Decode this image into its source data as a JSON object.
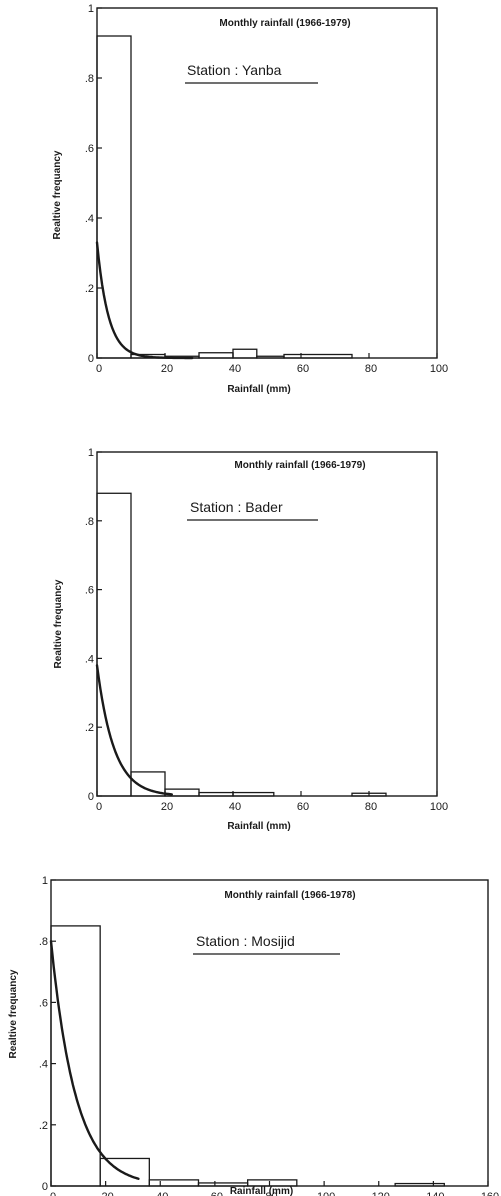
{
  "chart_data": [
    {
      "type": "bar",
      "title": "Monthly rainfall (1966-1979)",
      "station_label": "Station : Yanba",
      "xlabel": "Rainfall (mm)",
      "ylabel": "Realtive frequancy",
      "xlim": [
        0,
        100
      ],
      "ylim": [
        0,
        1
      ],
      "xticks": [
        "0",
        "20",
        "40",
        "60",
        "80",
        "100"
      ],
      "yticks": [
        "0",
        ".2",
        ".4",
        ".6",
        ".8",
        "1"
      ],
      "bins": [
        {
          "x0": 0,
          "x1": 10,
          "value": 0.92
        },
        {
          "x0": 10,
          "x1": 20,
          "value": 0.01
        },
        {
          "x0": 20,
          "x1": 30,
          "value": 0.005
        },
        {
          "x0": 30,
          "x1": 40,
          "value": 0.015
        },
        {
          "x0": 40,
          "x1": 47,
          "value": 0.025
        },
        {
          "x0": 47,
          "x1": 55,
          "value": 0.005
        },
        {
          "x0": 55,
          "x1": 75,
          "value": 0.01
        }
      ],
      "curve": {
        "a": 0.33,
        "k": 0.3,
        "xmax": 28
      }
    },
    {
      "type": "bar",
      "title": "Monthly rainfall (1966-1979)",
      "station_label": "Station : Bader",
      "xlabel": "Rainfall (mm)",
      "ylabel": "Realtive frequancy",
      "xlim": [
        0,
        100
      ],
      "ylim": [
        0,
        1
      ],
      "xticks": [
        "0",
        "20",
        "40",
        "60",
        "80",
        "100"
      ],
      "yticks": [
        "0",
        ".2",
        ".4",
        ".6",
        ".8",
        "1"
      ],
      "bins": [
        {
          "x0": 0,
          "x1": 10,
          "value": 0.88
        },
        {
          "x0": 10,
          "x1": 20,
          "value": 0.07
        },
        {
          "x0": 20,
          "x1": 30,
          "value": 0.02
        },
        {
          "x0": 30,
          "x1": 40,
          "value": 0.01
        },
        {
          "x0": 40,
          "x1": 52,
          "value": 0.01
        },
        {
          "x0": 75,
          "x1": 85,
          "value": 0.008
        }
      ],
      "curve": {
        "a": 0.38,
        "k": 0.2,
        "xmax": 22
      }
    },
    {
      "type": "bar",
      "title": "Monthly rainfall (1966-1978)",
      "station_label": "Station : Mosijid",
      "xlabel": "Rainfall (mm)",
      "ylabel": "Realtive frequancy",
      "xlim": [
        0,
        160
      ],
      "ylim": [
        0,
        1
      ],
      "xticks": [
        "0",
        "20",
        "40",
        "60",
        "80",
        "100",
        "120",
        "140",
        "160"
      ],
      "yticks": [
        "0",
        ".2",
        ".4",
        ".6",
        ".8",
        "1"
      ],
      "bins": [
        {
          "x0": 0,
          "x1": 18,
          "value": 0.85
        },
        {
          "x0": 18,
          "x1": 36,
          "value": 0.09
        },
        {
          "x0": 36,
          "x1": 54,
          "value": 0.02
        },
        {
          "x0": 54,
          "x1": 72,
          "value": 0.01
        },
        {
          "x0": 72,
          "x1": 90,
          "value": 0.02
        },
        {
          "x0": 126,
          "x1": 144,
          "value": 0.008
        }
      ],
      "curve": {
        "a": 0.8,
        "k": 0.11,
        "xmax": 32
      }
    }
  ]
}
